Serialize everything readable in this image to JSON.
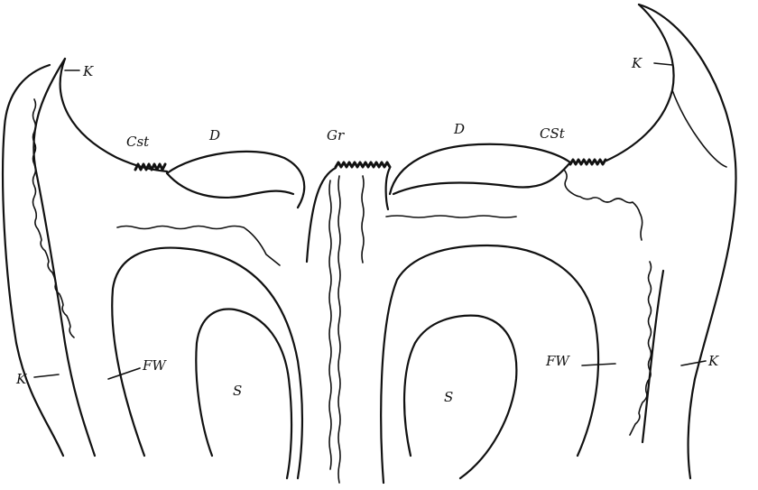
{
  "labels": {
    "k_top_left": "K",
    "k_top_right": "K",
    "k_bottom_left": "K",
    "k_bottom_right": "K",
    "cst_left": "Cst",
    "cst_right": "CSt",
    "d_left": "D",
    "d_right": "D",
    "gr": "Gr",
    "fw_left": "FW",
    "fw_right": "FW",
    "s_left": "S",
    "s_right": "S"
  },
  "colors": {
    "ink": "#111111",
    "paper": "#ffffff"
  }
}
